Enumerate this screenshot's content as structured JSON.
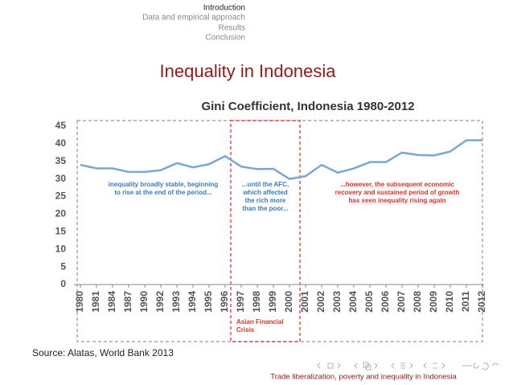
{
  "nav": [
    "Introduction",
    "Data and empirical approach",
    "Results",
    "Conclusion"
  ],
  "slide_title": "Inequality in Indonesia",
  "chart_data": {
    "type": "line",
    "title": "Gini Coefficient, Indonesia 1980-2012",
    "categories": [
      "1980",
      "1981",
      "1984",
      "1987",
      "1990",
      "1992",
      "1993",
      "1994",
      "1995",
      "1996",
      "1997",
      "1998",
      "1999",
      "2000",
      "2001",
      "2002",
      "2003",
      "2004",
      "2005",
      "2006",
      "2007",
      "2008",
      "2009",
      "2010",
      "2011",
      "2012"
    ],
    "values": [
      34,
      33,
      33,
      32,
      32,
      32.5,
      34.5,
      33.3,
      34.2,
      36.5,
      33.5,
      32.8,
      32.9,
      30,
      30.8,
      34,
      31.8,
      33,
      34.8,
      34.8,
      37.5,
      36.8,
      36.7,
      37.8,
      41,
      41
    ],
    "color": "#7ca6d2",
    "ylim": [
      0,
      45
    ],
    "yticks": [
      0,
      5,
      10,
      15,
      20,
      25,
      30,
      35,
      40,
      45
    ],
    "annotations": [
      {
        "lines": [
          "inequality broadly stable, beginning",
          "to rise at the end of the period..."
        ],
        "color": "#3b7ac8"
      },
      {
        "lines": [
          "...until the AFC,",
          "which affected",
          "the rich more",
          "than the poor..."
        ],
        "color": "#3b7ac8"
      },
      {
        "lines": [
          "...however, the subsequent economic",
          "recovery and sustained period of growth",
          "has seen inequality rising again"
        ],
        "color": "#e4312b"
      },
      {
        "lines": [
          "Asian Financial",
          "Crisis"
        ],
        "color": "#e4312b"
      }
    ]
  },
  "source": "Source: Alatas, World Bank 2013",
  "footer": "Trade liberalization, poverty and inequality in Indonesia"
}
